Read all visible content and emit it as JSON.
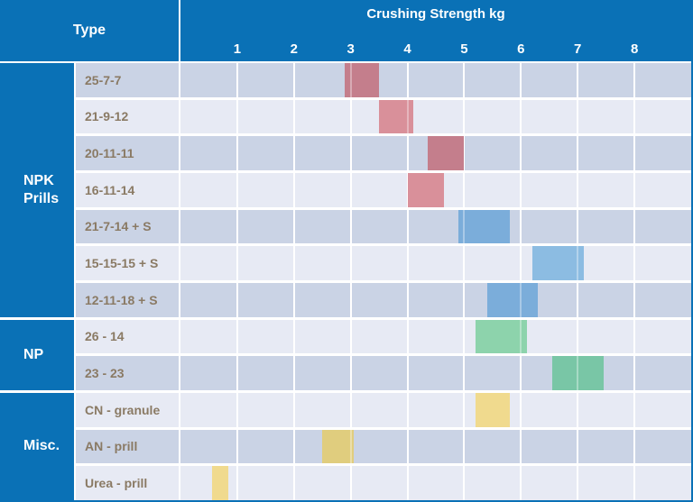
{
  "header": {
    "type_label": "Type",
    "title": "Crushing Strength kg"
  },
  "colors": {
    "header_blue": "#0a71b6",
    "row_bg_dark": "#cad3e5",
    "row_bg_light": "#e7eaf4",
    "row_label_text": "#8a7a64",
    "gridline_white": "#ffffff",
    "bars": {
      "red": {
        "on_dark": "#c47e8c",
        "on_light": "#d9909a"
      },
      "blue": {
        "on_dark": "#7badda",
        "on_light": "#8cbce2"
      },
      "green": {
        "on_dark": "#79c6a6",
        "on_light": "#8dd3ac"
      },
      "yellow": {
        "on_dark": "#e0cd7e",
        "on_light": "#f0da8e"
      }
    }
  },
  "chart_data": {
    "type": "bar",
    "subtype": "floating-range-horizontal",
    "title": "Crushing Strength kg",
    "row_header": "Type",
    "xlabel": "Crushing Strength kg",
    "ylabel": "Type",
    "xlim": [
      0,
      9
    ],
    "x_ticks": [
      1,
      2,
      3,
      4,
      5,
      6,
      7,
      8
    ],
    "grid": true,
    "legend": false,
    "groups": [
      {
        "label": "NPK Prills",
        "rows": [
          {
            "label": "25-7-7",
            "color": "red",
            "range": [
              2.9,
              3.5
            ]
          },
          {
            "label": "21-9-12",
            "color": "red",
            "range": [
              3.5,
              4.1
            ]
          },
          {
            "label": "20-11-11",
            "color": "red",
            "range": [
              4.35,
              5.0
            ]
          },
          {
            "label": "16-11-14",
            "color": "red",
            "range": [
              4.0,
              4.65
            ]
          },
          {
            "label": "21-7-14 + S",
            "color": "blue",
            "range": [
              4.9,
              5.8
            ]
          },
          {
            "label": "15-15-15 + S",
            "color": "blue",
            "range": [
              6.2,
              7.1
            ]
          },
          {
            "label": "12-11-18 + S",
            "color": "blue",
            "range": [
              5.4,
              6.3
            ]
          }
        ]
      },
      {
        "label": "NP",
        "rows": [
          {
            "label": "26 - 14",
            "color": "green",
            "range": [
              5.2,
              6.1
            ]
          },
          {
            "label": "23 - 23",
            "color": "green",
            "range": [
              6.55,
              7.45
            ]
          }
        ]
      },
      {
        "label": "Misc.",
        "rows": [
          {
            "label": "CN - granule",
            "color": "yellow",
            "range": [
              5.2,
              5.8
            ]
          },
          {
            "label": "AN - prill",
            "color": "yellow",
            "range": [
              2.5,
              3.05
            ]
          },
          {
            "label": "Urea - prill",
            "color": "yellow",
            "range": [
              0.55,
              0.85
            ]
          }
        ]
      }
    ]
  }
}
